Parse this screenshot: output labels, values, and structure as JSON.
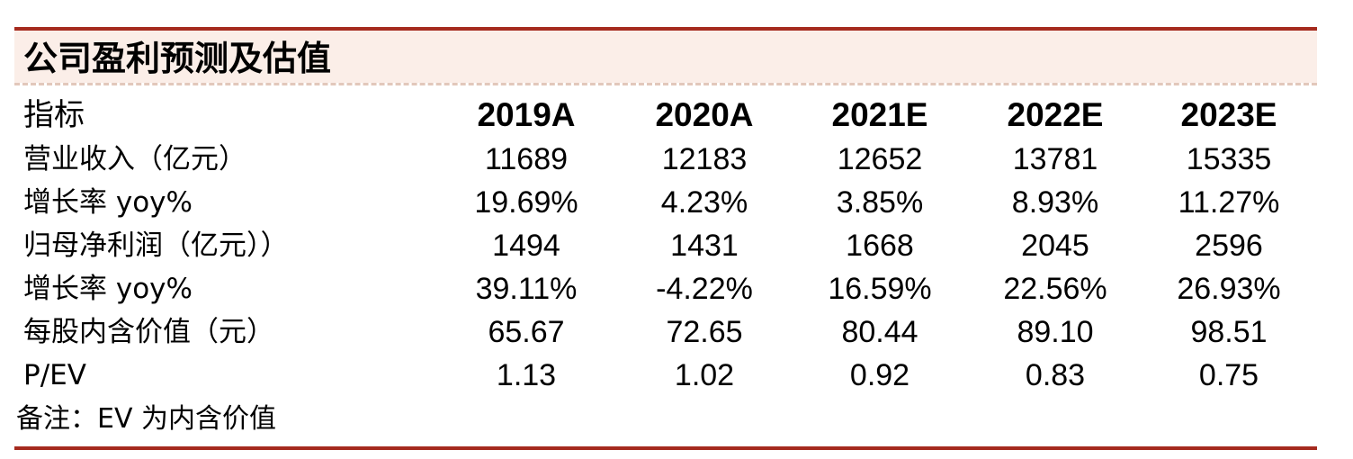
{
  "colors": {
    "rule": "#a52a1e",
    "title_band": "#fbeee8",
    "dash": "#e2c8bb"
  },
  "title": "公司盈利预测及估值",
  "table": {
    "header_label": "指标",
    "columns": [
      "2019A",
      "2020A",
      "2021E",
      "2022E",
      "2023E"
    ],
    "rows": [
      {
        "label": "营业收入（亿元）",
        "values": [
          "11689",
          "12183",
          "12652",
          "13781",
          "15335"
        ]
      },
      {
        "label": "增长率 yoy%",
        "values": [
          "19.69%",
          "4.23%",
          "3.85%",
          "8.93%",
          "11.27%"
        ]
      },
      {
        "label": "归母净利润（亿元））",
        "values": [
          "1494",
          "1431",
          "1668",
          "2045",
          "2596"
        ]
      },
      {
        "label": "增长率 yoy%",
        "values": [
          "39.11%",
          "-4.22%",
          "16.59%",
          "22.56%",
          "26.93%"
        ]
      },
      {
        "label": "每股内含价值（元）",
        "values": [
          "65.67",
          "72.65",
          "80.44",
          "89.10",
          "98.51"
        ]
      },
      {
        "label": "P/EV",
        "values": [
          "1.13",
          "1.02",
          "0.92",
          "0.83",
          "0.75"
        ]
      }
    ]
  },
  "note": "备注：EV 为内含价值"
}
